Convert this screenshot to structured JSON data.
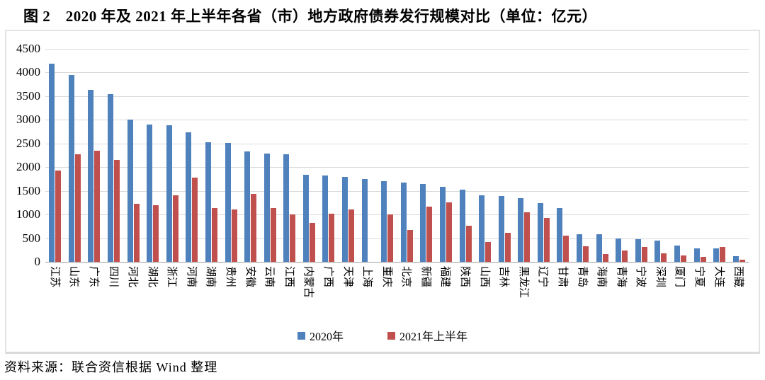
{
  "title": "图 2　2020 年及 2021 年上半年各省（市）地方政府债券发行规模对比（单位：亿元）",
  "source": "资料来源：联合资信根据 Wind 整理",
  "colors": {
    "series_2020": "#4f81bd",
    "series_2021h1": "#c0504d",
    "gridline": "#d9d9d9",
    "axis_line": "#9f9f9f",
    "frame_border": "#e3e3e3"
  },
  "legend": {
    "item_2020": "2020年",
    "item_2021h1": "2021年上半年"
  },
  "chart_data": {
    "type": "bar",
    "title": "图 2　2020 年及 2021 年上半年各省（市）地方政府债券发行规模对比",
    "unit": "亿元",
    "xlabel": "",
    "ylabel": "",
    "ylim": [
      0,
      4500
    ],
    "yticks": [
      0,
      500,
      1000,
      1500,
      2000,
      2500,
      3000,
      3500,
      4000,
      4500
    ],
    "grid": true,
    "legend_position": "bottom",
    "categories": [
      "江苏",
      "山东",
      "广东",
      "四川",
      "河北",
      "湖北",
      "浙江",
      "河南",
      "湖南",
      "贵州",
      "安徽",
      "云南",
      "江西",
      "内蒙古",
      "广西",
      "天津",
      "上海",
      "重庆",
      "北京",
      "新疆",
      "福建",
      "陕西",
      "山西",
      "吉林",
      "黑龙江",
      "辽宁",
      "甘肃",
      "青岛",
      "海南",
      "青海",
      "宁波",
      "深圳",
      "厦门",
      "宁夏",
      "大连",
      "西藏"
    ],
    "series": [
      {
        "name": "2020年",
        "color": "#4f81bd",
        "values": [
          4180,
          3940,
          3640,
          3540,
          3000,
          2900,
          2880,
          2730,
          2530,
          2510,
          2330,
          2290,
          2280,
          1840,
          1830,
          1800,
          1750,
          1700,
          1670,
          1640,
          1590,
          1530,
          1400,
          1390,
          1340,
          1240,
          1130,
          590,
          580,
          500,
          480,
          450,
          350,
          290,
          290,
          120
        ]
      },
      {
        "name": "2021年上半年",
        "color": "#c0504d",
        "values": [
          1930,
          2270,
          2350,
          2150,
          1230,
          1190,
          1410,
          1780,
          1130,
          1100,
          1440,
          1140,
          1000,
          820,
          1020,
          1110,
          0,
          1000,
          680,
          1170,
          1260,
          760,
          420,
          610,
          1040,
          930,
          560,
          330,
          170,
          240,
          320,
          180,
          130,
          110,
          320,
          40
        ]
      }
    ]
  }
}
